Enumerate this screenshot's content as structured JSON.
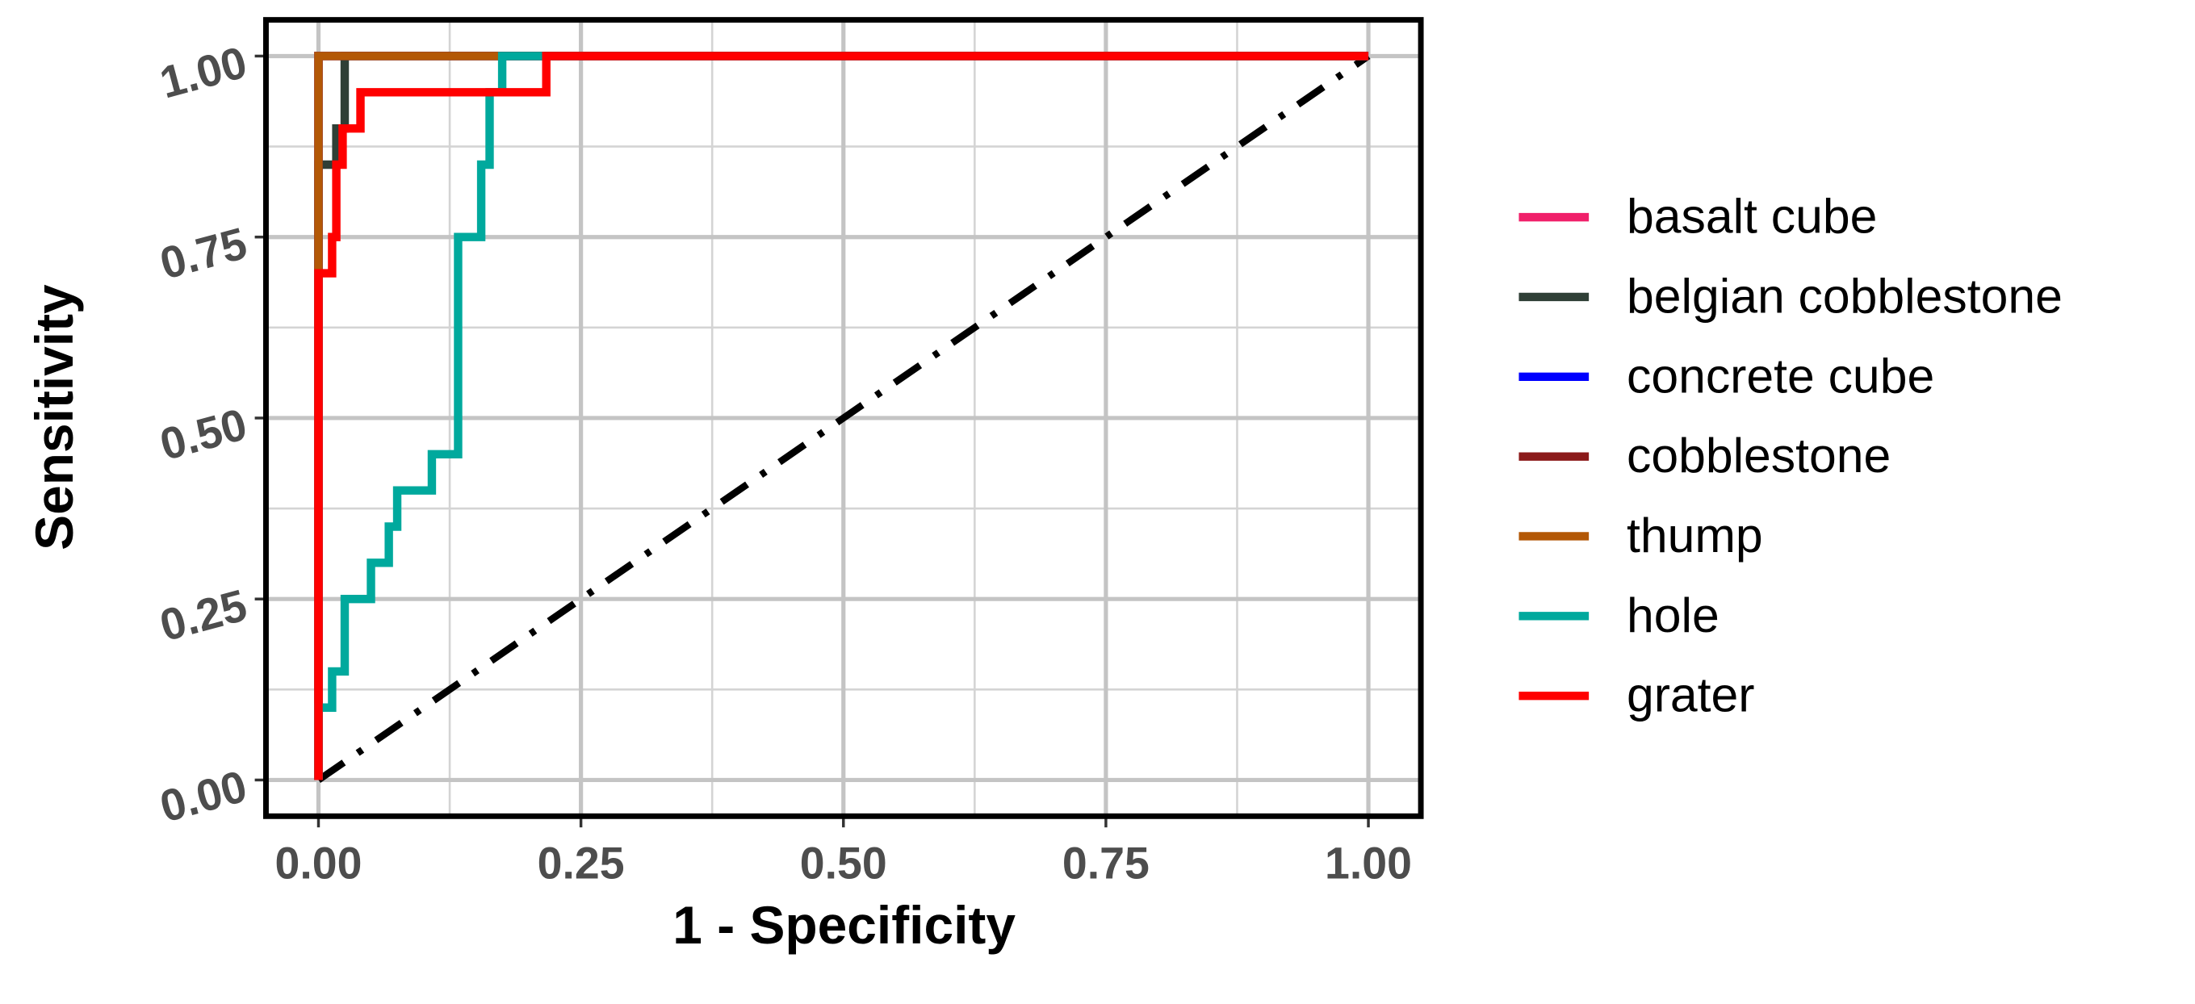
{
  "chart_data": {
    "type": "line",
    "x_label": "1 - Specificity",
    "y_label": "Sensitivity",
    "xlim": [
      -0.05,
      1.05
    ],
    "ylim": [
      -0.05,
      1.05
    ],
    "xticks": [
      {
        "value": 0,
        "label": "0.00"
      },
      {
        "value": 0.25,
        "label": "0.25"
      },
      {
        "value": 0.5,
        "label": "0.50"
      },
      {
        "value": 0.75,
        "label": "0.75"
      },
      {
        "value": 1,
        "label": "1.00"
      }
    ],
    "yticks": [
      {
        "value": 0,
        "label": "0.00"
      },
      {
        "value": 0.25,
        "label": "0.25"
      },
      {
        "value": 0.5,
        "label": "0.50"
      },
      {
        "value": 0.75,
        "label": "0.75"
      },
      {
        "value": 1,
        "label": "1.00"
      }
    ],
    "grid": true,
    "diagonal": {
      "x": [
        0,
        1
      ],
      "y": [
        0,
        1
      ],
      "color": "#000000"
    },
    "series": [
      {
        "name": "basalt cube",
        "color": "#f0206a",
        "x": [
          0,
          0,
          1
        ],
        "values": [
          0,
          1,
          1
        ]
      },
      {
        "name": "belgian cobblestone",
        "color": "#2f3f36",
        "x": [
          0,
          0,
          0.017,
          0.017,
          0.025,
          0.025,
          1
        ],
        "values": [
          0,
          0.85,
          0.85,
          0.9,
          0.9,
          1,
          1
        ]
      },
      {
        "name": "concrete cube",
        "color": "#0000ff",
        "x": [
          0,
          0,
          1
        ],
        "values": [
          0,
          1,
          1
        ]
      },
      {
        "name": "cobblestone",
        "color": "#8b1a1a",
        "x": [
          0,
          0,
          1
        ],
        "values": [
          0,
          1,
          1
        ]
      },
      {
        "name": "thump",
        "color": "#b35806",
        "x": [
          0,
          0,
          1
        ],
        "values": [
          0,
          1,
          1
        ]
      },
      {
        "name": "hole",
        "color": "#00a99d",
        "x": [
          0,
          0,
          0.013,
          0.013,
          0.025,
          0.025,
          0.05,
          0.05,
          0.067,
          0.067,
          0.075,
          0.075,
          0.108,
          0.108,
          0.133,
          0.133,
          0.155,
          0.155,
          0.163,
          0.163,
          0.175,
          0.175,
          1
        ],
        "values": [
          0,
          0.1,
          0.1,
          0.15,
          0.15,
          0.25,
          0.25,
          0.3,
          0.3,
          0.35,
          0.35,
          0.4,
          0.4,
          0.45,
          0.45,
          0.75,
          0.75,
          0.85,
          0.85,
          0.95,
          0.95,
          1,
          1
        ]
      },
      {
        "name": "grater",
        "color": "#ff0000",
        "x": [
          0,
          0,
          0.013,
          0.013,
          0.017,
          0.017,
          0.023,
          0.023,
          0.04,
          0.04,
          0.217,
          0.217,
          1
        ],
        "values": [
          0,
          0.7,
          0.7,
          0.75,
          0.75,
          0.85,
          0.85,
          0.9,
          0.9,
          0.95,
          0.95,
          1,
          1
        ]
      }
    ]
  }
}
